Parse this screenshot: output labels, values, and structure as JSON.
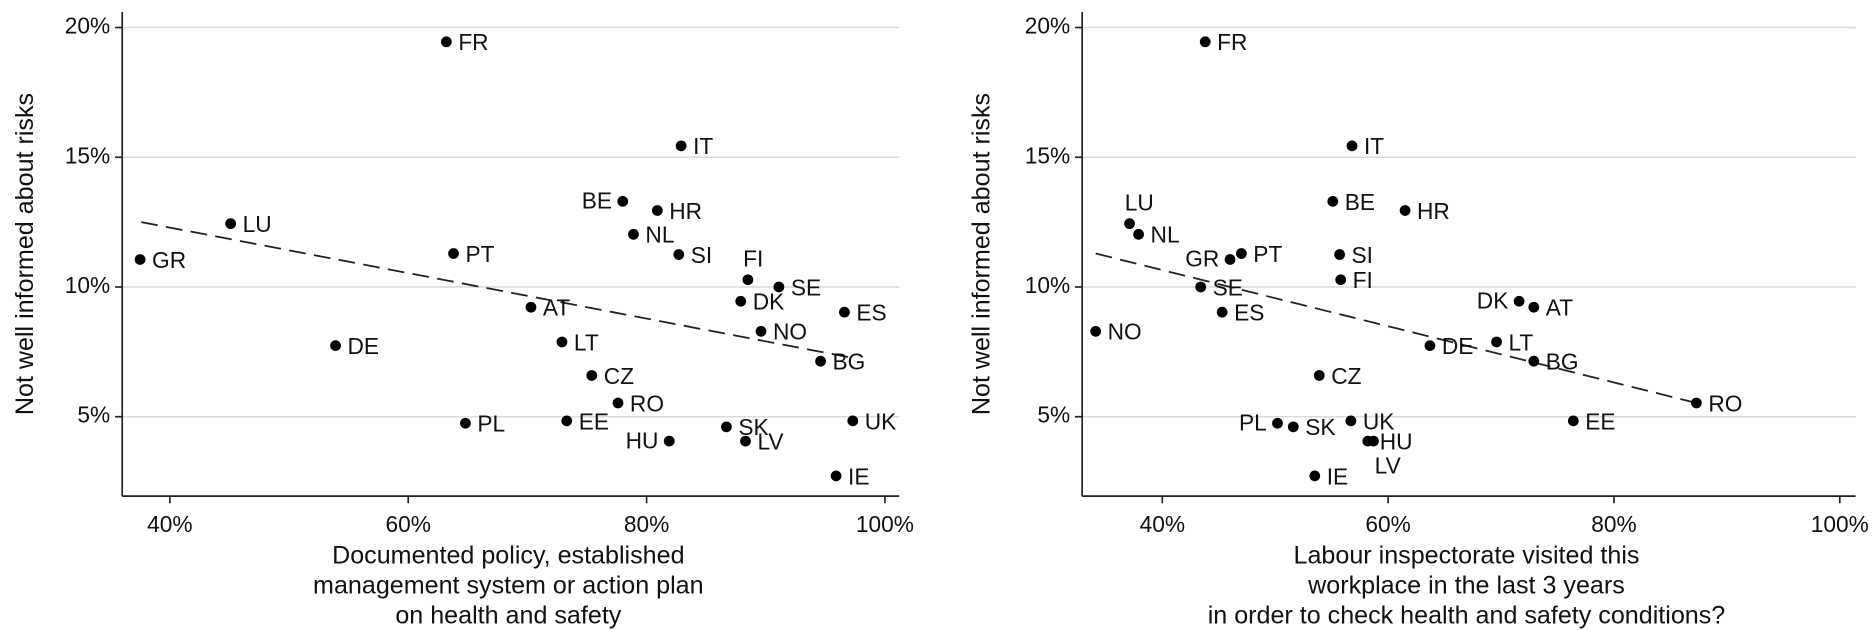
{
  "chart_data": [
    {
      "type": "scatter",
      "ylabel": "Not well informed about risks",
      "xlabel": [
        "Documented policy, established",
        "management system or action plan",
        "on health and safety"
      ],
      "labels": [
        "FR",
        "IT",
        "BE",
        "HR",
        "NL",
        "SI",
        "LU",
        "GR",
        "PT",
        "FI",
        "SE",
        "DK",
        "ES",
        "AT",
        "NO",
        "LT",
        "DE",
        "BG",
        "CZ",
        "RO",
        "SK",
        "PL",
        "EE",
        "UK",
        "HU",
        "LV",
        "IE"
      ],
      "x": [
        63.2,
        82.9,
        78.0,
        80.9,
        78.9,
        82.7,
        45.1,
        37.5,
        63.8,
        88.5,
        91.1,
        87.9,
        96.6,
        70.3,
        89.6,
        72.9,
        53.9,
        94.6,
        75.4,
        77.6,
        86.7,
        64.8,
        73.3,
        97.3,
        81.9,
        88.3,
        95.9
      ],
      "y": [
        19.45,
        15.44,
        13.3,
        12.95,
        12.03,
        11.25,
        12.44,
        11.06,
        11.29,
        10.28,
        10.0,
        9.45,
        9.03,
        9.22,
        8.29,
        7.88,
        7.74,
        7.14,
        6.59,
        5.53,
        4.61,
        4.75,
        4.84,
        4.84,
        4.06,
        4.06,
        2.72
      ],
      "trend": {
        "x": [
          37.6,
          96.9
        ],
        "y": [
          12.5,
          7.3
        ]
      },
      "color": "#000000",
      "xlim": [
        36.0,
        101.2
      ],
      "ylim": [
        1.94,
        20.6
      ],
      "xticks": [
        {
          "value": 40,
          "label": "40%"
        },
        {
          "value": 60,
          "label": "60%"
        },
        {
          "value": 80,
          "label": "80%"
        },
        {
          "value": 100,
          "label": "100%"
        }
      ],
      "yticks": [
        {
          "value": 5,
          "label": "5%"
        },
        {
          "value": 10,
          "label": "10%"
        },
        {
          "value": 15,
          "label": "15%"
        },
        {
          "value": 20,
          "label": "20%"
        }
      ],
      "grid": true
    },
    {
      "type": "scatter",
      "ylabel": "Not well informed about risks",
      "xlabel": [
        "Labour inspectorate visited this",
        "workplace in the last 3 years",
        "in order to check health and safety conditions?"
      ],
      "labels": [
        "FR",
        "IT",
        "BE",
        "HR",
        "NL",
        "SI",
        "LU",
        "GR",
        "PT",
        "FI",
        "SE",
        "DK",
        "ES",
        "AT",
        "NO",
        "LT",
        "DE",
        "BG",
        "CZ",
        "RO",
        "SK",
        "PL",
        "EE",
        "UK",
        "HU",
        "LV",
        "IE"
      ],
      "x": [
        43.8,
        56.8,
        55.1,
        61.5,
        37.9,
        55.7,
        37.1,
        46.0,
        47.0,
        55.8,
        43.4,
        71.6,
        45.3,
        72.9,
        34.1,
        69.6,
        63.7,
        72.9,
        53.9,
        87.3,
        51.6,
        50.2,
        76.4,
        56.7,
        58.2,
        58.7,
        53.5
      ],
      "y": [
        19.45,
        15.44,
        13.3,
        12.95,
        12.03,
        11.25,
        12.44,
        11.06,
        11.29,
        10.28,
        10.0,
        9.45,
        9.03,
        9.22,
        8.29,
        7.88,
        7.74,
        7.14,
        6.59,
        5.53,
        4.61,
        4.75,
        4.84,
        4.84,
        4.06,
        4.06,
        2.72
      ],
      "trend": {
        "x": [
          34.1,
          87.3
        ],
        "y": [
          11.29,
          5.53
        ]
      },
      "color": "#000000",
      "xlim": [
        32.9,
        101.4
      ],
      "ylim": [
        1.94,
        20.6
      ],
      "xticks": [
        {
          "value": 40,
          "label": "40%"
        },
        {
          "value": 60,
          "label": "60%"
        },
        {
          "value": 80,
          "label": "80%"
        },
        {
          "value": 100,
          "label": "100%"
        }
      ],
      "yticks": [
        {
          "value": 5,
          "label": "5%"
        },
        {
          "value": 10,
          "label": "10%"
        },
        {
          "value": 15,
          "label": "15%"
        },
        {
          "value": 20,
          "label": "20%"
        }
      ],
      "grid": true
    }
  ]
}
